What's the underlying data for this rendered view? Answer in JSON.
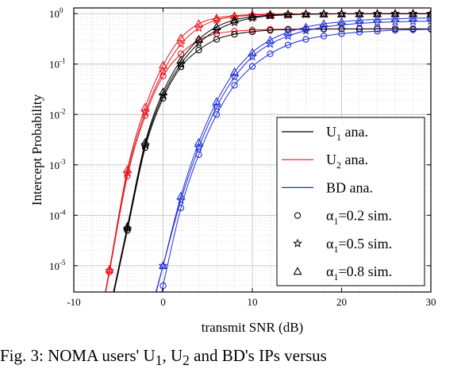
{
  "chart_data": {
    "type": "line",
    "xlabel": "transmit SNR (dB)",
    "ylabel": "Intercept Probability",
    "xlim": [
      -10,
      30
    ],
    "ylim": [
      3e-06,
      1.3
    ],
    "yscale": "log",
    "grid": true,
    "legend_position": "bottom-right",
    "x_ticks": [
      "-10",
      "0",
      "10",
      "20",
      "30"
    ],
    "y_ticks": [
      {
        "value": 1,
        "base": "10",
        "exp": "0"
      },
      {
        "value": 0.1,
        "base": "10",
        "exp": "-1"
      },
      {
        "value": 0.01,
        "base": "10",
        "exp": "-2"
      },
      {
        "value": 0.001,
        "base": "10",
        "exp": "-3"
      },
      {
        "value": 0.0001,
        "base": "10",
        "exp": "-4"
      },
      {
        "value": 1e-05,
        "base": "10",
        "exp": "-5"
      }
    ],
    "colors": {
      "u1": "#000000",
      "u2": "#e8141c",
      "bd": "#1f2fd6"
    },
    "legend": [
      {
        "kind": "line",
        "color": "#000000",
        "label": "U",
        "sub": "1",
        "rest": " ana."
      },
      {
        "kind": "line",
        "color": "#e8141c",
        "label": "U",
        "sub": "2",
        "rest": " ana."
      },
      {
        "kind": "line",
        "color": "#1f2fd6",
        "label": "BD ana.",
        "sub": "",
        "rest": ""
      },
      {
        "kind": "marker",
        "marker": "circle",
        "label": "α",
        "sub": "1",
        "rest": "=0.2 sim."
      },
      {
        "kind": "marker",
        "marker": "star",
        "label": "α",
        "sub": "1",
        "rest": "=0.5 sim."
      },
      {
        "kind": "marker",
        "marker": "triangle",
        "label": "α",
        "sub": "1",
        "rest": "=0.8 sim."
      }
    ],
    "series": [
      {
        "group": "u2",
        "alpha": 0.8,
        "marker": "triangle",
        "x": [
          -6,
          -4,
          -2,
          0,
          2,
          4,
          6,
          8,
          10,
          12,
          14,
          16,
          18,
          20,
          22,
          24,
          26,
          28,
          30
        ],
        "y": [
          8.5e-06,
          0.0008,
          0.014,
          0.095,
          0.33,
          0.63,
          0.82,
          0.91,
          0.955,
          0.975,
          0.985,
          0.99,
          0.993,
          0.995,
          0.996,
          0.997,
          0.998,
          0.998,
          0.999
        ]
      },
      {
        "group": "u2",
        "alpha": 0.5,
        "marker": "star",
        "x": [
          -6,
          -4,
          -2,
          0,
          2,
          4,
          6,
          8,
          10,
          12,
          14,
          16,
          18,
          20,
          22,
          24,
          26,
          28,
          30
        ],
        "y": [
          8e-06,
          0.0007,
          0.011,
          0.07,
          0.25,
          0.52,
          0.75,
          0.87,
          0.935,
          0.965,
          0.98,
          0.987,
          0.991,
          0.994,
          0.996,
          0.997,
          0.998,
          0.998,
          0.999
        ]
      },
      {
        "group": "u2",
        "alpha": 0.2,
        "marker": "circle",
        "x": [
          -6,
          -4,
          -2,
          0,
          2,
          4,
          6,
          8,
          10,
          12,
          14,
          16,
          18,
          20,
          22,
          24,
          26,
          28,
          30
        ],
        "y": [
          7.5e-06,
          0.0006,
          0.0095,
          0.058,
          0.16,
          0.3,
          0.4,
          0.45,
          0.475,
          0.487,
          0.493,
          0.496,
          0.498,
          0.499,
          0.499,
          0.5,
          0.5,
          0.5,
          0.5
        ]
      },
      {
        "group": "u1",
        "alpha": 0.8,
        "marker": "triangle",
        "x": [
          -4,
          -2,
          0,
          2,
          4,
          6,
          8,
          10,
          12,
          14,
          16,
          18,
          20,
          22,
          24,
          26,
          28,
          30
        ],
        "y": [
          6e-05,
          0.0028,
          0.028,
          0.12,
          0.31,
          0.55,
          0.75,
          0.87,
          0.935,
          0.965,
          0.98,
          0.988,
          0.992,
          0.995,
          0.997,
          0.998,
          0.998,
          0.999
        ]
      },
      {
        "group": "u1",
        "alpha": 0.5,
        "marker": "star",
        "x": [
          -4,
          -2,
          0,
          2,
          4,
          6,
          8,
          10,
          12,
          14,
          16,
          18,
          20,
          22,
          24,
          26,
          28,
          30
        ],
        "y": [
          5.5e-05,
          0.0025,
          0.024,
          0.1,
          0.26,
          0.47,
          0.67,
          0.82,
          0.91,
          0.95,
          0.975,
          0.985,
          0.99,
          0.994,
          0.996,
          0.997,
          0.998,
          0.999
        ]
      },
      {
        "group": "u1",
        "alpha": 0.2,
        "marker": "circle",
        "x": [
          -4,
          -2,
          0,
          2,
          4,
          6,
          8,
          10,
          12,
          14,
          16,
          18,
          20,
          22,
          24,
          26,
          28,
          30
        ],
        "y": [
          5e-05,
          0.0022,
          0.021,
          0.088,
          0.19,
          0.31,
          0.39,
          0.44,
          0.468,
          0.483,
          0.491,
          0.495,
          0.497,
          0.498,
          0.499,
          0.5,
          0.5,
          0.5
        ]
      },
      {
        "group": "bd",
        "alpha": 0.8,
        "marker": "triangle",
        "x": [
          0,
          2,
          4,
          6,
          8,
          10,
          12,
          14,
          16,
          18,
          20,
          22,
          24,
          26,
          28,
          30
        ],
        "y": [
          1e-05,
          0.00024,
          0.0028,
          0.018,
          0.07,
          0.17,
          0.3,
          0.43,
          0.54,
          0.63,
          0.69,
          0.74,
          0.77,
          0.79,
          0.81,
          0.82
        ]
      },
      {
        "group": "bd",
        "alpha": 0.5,
        "marker": "star",
        "x": [
          0,
          2,
          4,
          6,
          8,
          10,
          12,
          14,
          16,
          18,
          20,
          22,
          24,
          26,
          28,
          30
        ],
        "y": [
          1e-05,
          0.0002,
          0.0022,
          0.014,
          0.055,
          0.14,
          0.25,
          0.36,
          0.46,
          0.54,
          0.6,
          0.64,
          0.67,
          0.69,
          0.7,
          0.71
        ]
      },
      {
        "group": "bd",
        "alpha": 0.2,
        "marker": "circle",
        "x": [
          0,
          2,
          4,
          6,
          8,
          10,
          12,
          14,
          16,
          18,
          20,
          22,
          24,
          26,
          28,
          30
        ],
        "y": [
          4e-06,
          0.00014,
          0.0016,
          0.01,
          0.038,
          0.09,
          0.16,
          0.24,
          0.31,
          0.36,
          0.4,
          0.43,
          0.45,
          0.47,
          0.48,
          0.49
        ]
      }
    ]
  },
  "caption": {
    "text": "Fig. 3: NOMA users' U",
    "sub1": "1",
    "mid": ", U",
    "sub2": "2",
    "rest": " and BD's IPs versus"
  }
}
